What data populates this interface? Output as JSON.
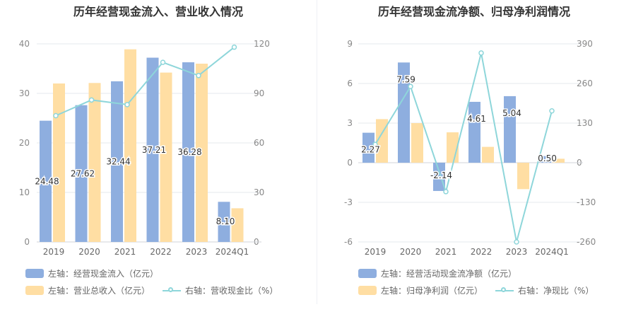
{
  "colors": {
    "bar1": "#8eaedf",
    "bar2": "#ffdea3",
    "line": "#8ed6da"
  },
  "chart_data": [
    {
      "type": "bar",
      "title": "历年经营现金流入、营业收入情况",
      "categories": [
        "2019",
        "2020",
        "2021",
        "2022",
        "2023",
        "2024Q1"
      ],
      "left_axis": {
        "min": 0,
        "max": 40,
        "ticks": [
          "0",
          "10",
          "20",
          "30",
          "40"
        ]
      },
      "right_axis": {
        "min": 0,
        "max": 120,
        "ticks": [
          "0",
          "30",
          "60",
          "90",
          "120"
        ]
      },
      "series": [
        {
          "name": "左轴：经营现金流入（亿元）",
          "type": "bar",
          "axis": "left",
          "values": [
            24.48,
            27.62,
            32.44,
            37.21,
            36.28,
            8.1
          ],
          "labels": [
            "24.48",
            "27.62",
            "32.44",
            "37.21",
            "36.28",
            "8.10"
          ]
        },
        {
          "name": "左轴：营业总收入（亿元）",
          "type": "bar",
          "axis": "left",
          "values": [
            32.0,
            32.1,
            38.9,
            34.2,
            36.0,
            6.8
          ]
        },
        {
          "name": "右轴：营收现金比（%）",
          "type": "line",
          "axis": "right",
          "values": [
            76.5,
            86.0,
            83.2,
            108.8,
            100.8,
            118.0
          ]
        }
      ],
      "grid": true
    },
    {
      "type": "bar",
      "title": "历年经营现金流净额、归母净利润情况",
      "categories": [
        "2019",
        "2020",
        "2021",
        "2022",
        "2023",
        "2024Q1"
      ],
      "left_axis": {
        "min": -6,
        "max": 9,
        "ticks": [
          "-6",
          "-3",
          "0",
          "3",
          "6",
          "9"
        ]
      },
      "right_axis": {
        "min": -260,
        "max": 390,
        "ticks": [
          "-260",
          "-130",
          "0",
          "130",
          "260",
          "390"
        ]
      },
      "series": [
        {
          "name": "左轴：经营活动现金流净额（亿元）",
          "type": "bar",
          "axis": "left",
          "values": [
            2.27,
            7.59,
            -2.14,
            4.61,
            5.04,
            0.5
          ],
          "labels": [
            "2.27",
            "7.59",
            "-2.14",
            "4.61",
            "5.04",
            "0.50"
          ]
        },
        {
          "name": "左轴：归母净利润（亿元）",
          "type": "bar",
          "axis": "left",
          "values": [
            3.3,
            3.0,
            2.3,
            1.2,
            -2.0,
            0.3
          ]
        },
        {
          "name": "右轴：净现比（%）",
          "type": "line",
          "axis": "right",
          "values": [
            60,
            250,
            -95,
            360,
            -260,
            170
          ]
        }
      ],
      "grid": true
    }
  ]
}
